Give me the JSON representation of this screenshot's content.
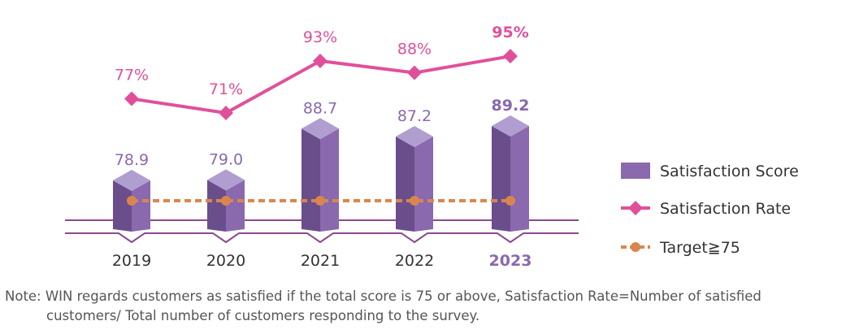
{
  "colors": {
    "bar": "#8a69ae",
    "bar_top": "#b09ed0",
    "bar_side": "#6a4e8c",
    "rate": "#e0509a",
    "target": "#d9864e",
    "base_line": "#8b4a8e",
    "axis_text": "#333333",
    "score_text": "#8a69ae"
  },
  "chart_data": {
    "type": "bar",
    "categories": [
      "2019",
      "2020",
      "2021",
      "2022",
      "2023"
    ],
    "highlight_category": "2023",
    "series": [
      {
        "name": "Satisfaction Score",
        "type": "bar",
        "values": [
          78.9,
          79.0,
          88.7,
          87.2,
          89.2
        ],
        "labels": [
          "78.9",
          "79.0",
          "88.7",
          "87.2",
          "89.2"
        ]
      },
      {
        "name": "Satisfaction Rate",
        "type": "line",
        "values": [
          77,
          71,
          93,
          88,
          95
        ],
        "labels": [
          "77%",
          "71%",
          "93%",
          "88%",
          "95%"
        ]
      },
      {
        "name": "Target≧75",
        "type": "line",
        "values": [
          75,
          75,
          75,
          75,
          75
        ]
      }
    ],
    "legend": [
      "Satisfaction Score",
      "Satisfaction Rate",
      "Target≧75"
    ],
    "legend_position": "right",
    "grid": false
  },
  "note": {
    "line1": "Note: WIN regards customers as satisfied if the total score is 75 or above, Satisfaction Rate=Number of satisfied",
    "line2": "customers/ Total number of customers responding to the survey."
  }
}
